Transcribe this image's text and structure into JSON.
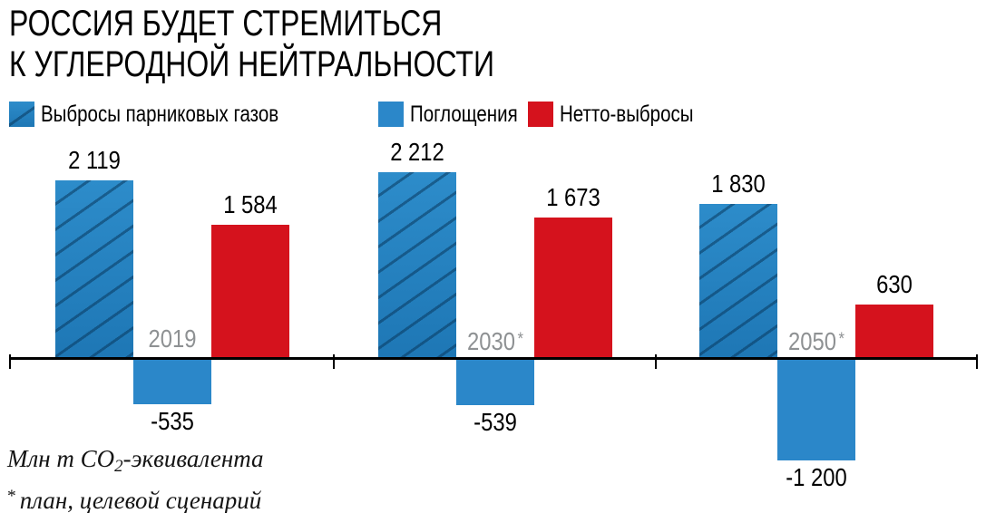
{
  "title": {
    "line1": "РОССИЯ БУДЕТ СТРЕМИТЬСЯ",
    "line2": "К УГЛЕРОДНОЙ НЕЙТРАЛЬНОСТИ"
  },
  "legend": {
    "items": [
      {
        "key": "emissions",
        "label": "Выбросы парниковых газов",
        "color": "#2384c4",
        "hatched": true
      },
      {
        "key": "absorptions",
        "label": "Поглощения",
        "color": "#2b87c9",
        "hatched": false
      },
      {
        "key": "net",
        "label": "Нетто-выбросы",
        "color": "#d5121d",
        "hatched": false
      }
    ]
  },
  "chart_data": {
    "type": "bar",
    "categories": [
      "2019",
      "2030*",
      "2050*"
    ],
    "series": [
      {
        "key": "emissions",
        "name": "Выбросы парниковых газов",
        "values": [
          2119,
          2212,
          1830
        ],
        "labels": [
          "2 119",
          "2 212",
          "1 830"
        ],
        "color": "#2384c4",
        "hatched": true
      },
      {
        "key": "absorptions",
        "name": "Поглощения",
        "values": [
          -535,
          -539,
          -1200
        ],
        "labels": [
          "-535",
          "-539",
          "-1 200"
        ],
        "color": "#2b87c9",
        "hatched": false
      },
      {
        "key": "net",
        "name": "Нетто-выбросы",
        "values": [
          1584,
          1673,
          630
        ],
        "labels": [
          "1 584",
          "1 673",
          "630"
        ],
        "color": "#d5121d",
        "hatched": false
      }
    ],
    "ylabel": "Млн т CO2-эквивалента",
    "baseline": 0,
    "grid": false,
    "legend_position": "top",
    "axis_color": "#000000",
    "year_label_color": "#8e9193"
  },
  "footnotes": {
    "units": {
      "prefix": "Млн т CO",
      "sub": "2",
      "suffix": "-эквивалента"
    },
    "note": {
      "marker": "*",
      "text": "план, целевой сценарий"
    }
  }
}
